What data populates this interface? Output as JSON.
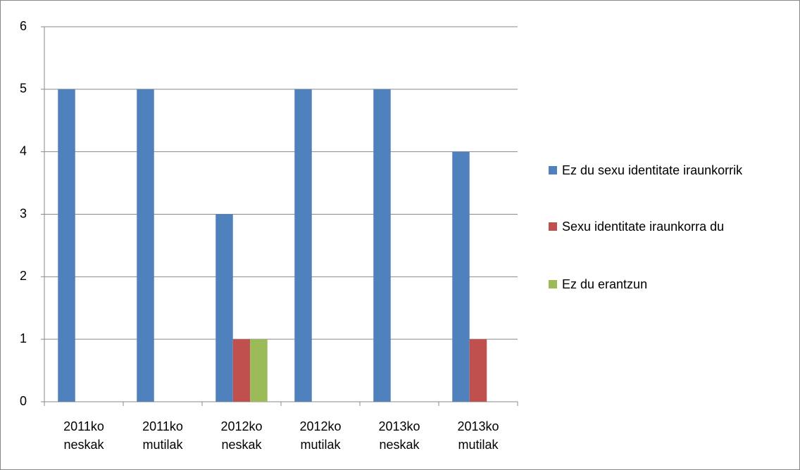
{
  "chart_data": {
    "type": "bar",
    "categories": [
      "2011ko neskak",
      "2011ko mutilak",
      "2012ko neskak",
      "2012ko mutilak",
      "2013ko neskak",
      "2013ko mutilak"
    ],
    "series": [
      {
        "name": "Ez du sexu identitate iraunkorrik",
        "color": "#4f81bd",
        "values": [
          5,
          5,
          3,
          5,
          5,
          4
        ]
      },
      {
        "name": "Sexu identitate iraunkorra du",
        "color": "#c0504d",
        "values": [
          0,
          0,
          1,
          0,
          0,
          1
        ]
      },
      {
        "name": "Ez du erantzun",
        "color": "#9bbb59",
        "values": [
          0,
          0,
          1,
          0,
          0,
          0
        ]
      }
    ],
    "ylim": [
      0,
      6
    ],
    "yticks": [
      0,
      1,
      2,
      3,
      4,
      5,
      6
    ],
    "grid": true,
    "legend": "right"
  }
}
